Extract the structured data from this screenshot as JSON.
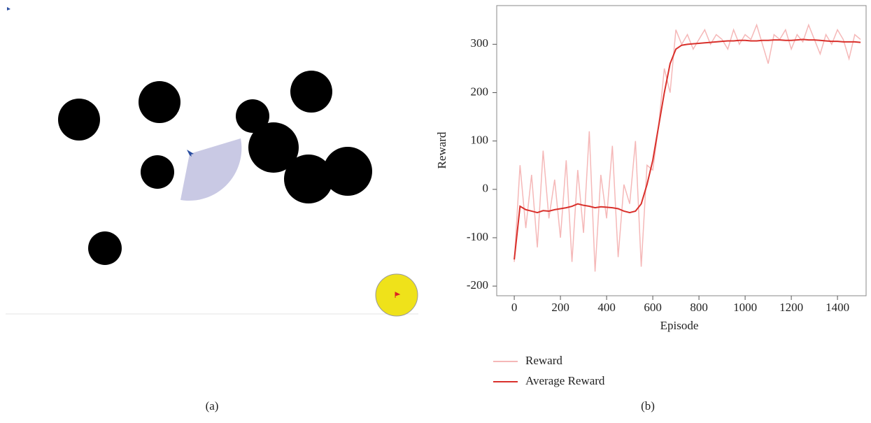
{
  "panels": {
    "left_caption": "(a)",
    "right_caption": "(b)"
  },
  "chart_data": {
    "type": "line",
    "xlabel": "Episode",
    "ylabel": "Reward",
    "x": [
      0,
      25,
      50,
      75,
      100,
      125,
      150,
      175,
      200,
      225,
      250,
      275,
      300,
      325,
      350,
      375,
      400,
      425,
      450,
      475,
      500,
      525,
      550,
      575,
      600,
      625,
      650,
      675,
      700,
      725,
      750,
      775,
      800,
      825,
      850,
      875,
      900,
      925,
      950,
      975,
      1000,
      1025,
      1050,
      1075,
      1100,
      1125,
      1150,
      1175,
      1200,
      1225,
      1250,
      1275,
      1300,
      1325,
      1350,
      1375,
      1400,
      1425,
      1450,
      1475,
      1500
    ],
    "series": [
      {
        "name": "Reward",
        "color": "#f5b8b8",
        "values": [
          -150,
          50,
          -80,
          30,
          -120,
          80,
          -60,
          20,
          -100,
          60,
          -150,
          40,
          -90,
          120,
          -170,
          30,
          -60,
          90,
          -140,
          10,
          -30,
          100,
          -160,
          50,
          40,
          130,
          250,
          200,
          330,
          300,
          320,
          290,
          310,
          330,
          300,
          320,
          310,
          290,
          330,
          300,
          320,
          310,
          340,
          300,
          260,
          320,
          310,
          330,
          290,
          320,
          305,
          340,
          310,
          280,
          320,
          300,
          330,
          310,
          270,
          320,
          310
        ]
      },
      {
        "name": "Average Reward",
        "color": "#d9302b",
        "values": [
          -145,
          -35,
          -42,
          -45,
          -48,
          -44,
          -45,
          -42,
          -40,
          -38,
          -35,
          -30,
          -33,
          -35,
          -38,
          -36,
          -37,
          -38,
          -40,
          -45,
          -48,
          -45,
          -30,
          10,
          60,
          130,
          200,
          260,
          290,
          298,
          300,
          301,
          302,
          303,
          304,
          305,
          306,
          307,
          307,
          308,
          308,
          307,
          307,
          308,
          308,
          309,
          309,
          308,
          308,
          309,
          310,
          309,
          309,
          308,
          307,
          306,
          306,
          305,
          305,
          305,
          304
        ]
      }
    ],
    "xlim": [
      -76,
      1524
    ],
    "xticks": [
      0,
      200,
      400,
      600,
      800,
      1000,
      1200,
      1400
    ],
    "ylim": [
      -220,
      380
    ],
    "yticks": [
      -200,
      -100,
      0,
      100,
      200,
      300
    ]
  }
}
